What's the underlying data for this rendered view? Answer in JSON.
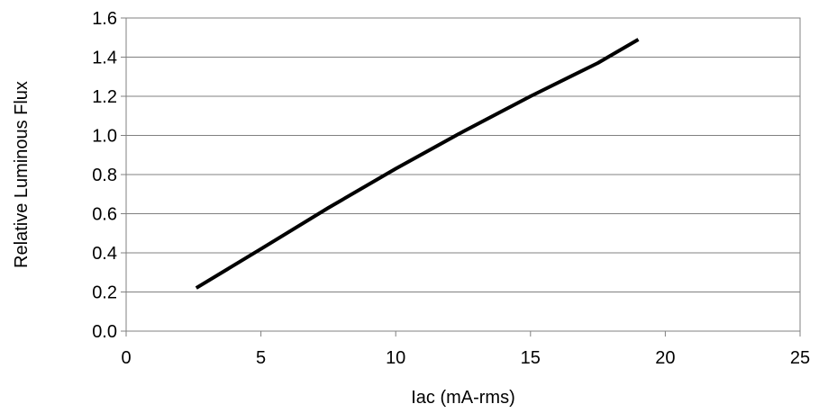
{
  "chart_data": {
    "type": "line",
    "title": "",
    "xlabel": "Iac (mA-rms)",
    "ylabel": "Relative Luminous Flux",
    "xlim": [
      0,
      25
    ],
    "ylim": [
      0.0,
      1.6
    ],
    "x_ticks": [
      "0",
      "5",
      "10",
      "15",
      "20",
      "25"
    ],
    "y_ticks": [
      "0.0",
      "0.2",
      "0.4",
      "0.6",
      "0.8",
      "1.0",
      "1.2",
      "1.4",
      "1.6"
    ],
    "grid": "horizontal",
    "legend": "none",
    "series": [
      {
        "color": "#000000",
        "x": [
          2.6,
          5,
          7.5,
          10,
          12.5,
          15,
          17.5,
          19.0
        ],
        "y": [
          0.22,
          0.42,
          0.63,
          0.83,
          1.02,
          1.2,
          1.37,
          1.49
        ]
      }
    ]
  }
}
